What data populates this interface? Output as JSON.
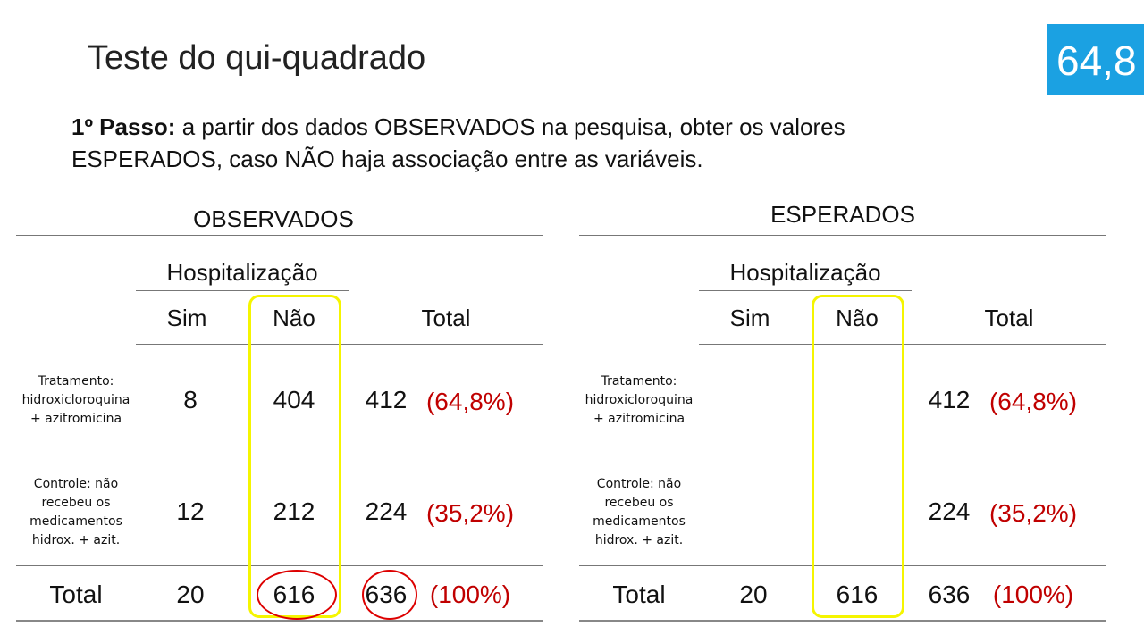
{
  "title": "Teste do qui-quadrado",
  "badge": "64,8",
  "step": {
    "label": "1º Passo:",
    "lines": [
      "a partir dos dados OBSERVADOS na pesquisa, obter os valores",
      "ESPERADOS, caso NÃO haja associação entre as variáveis."
    ]
  },
  "tables": [
    {
      "title": "OBSERVADOS",
      "group": "Hospitalização",
      "columns": [
        "Sim",
        "Não",
        "Total"
      ],
      "rows": [
        {
          "label": [
            "Tratamento:",
            "hidroxicloroquina",
            "+ azitromicina"
          ],
          "sim": "8",
          "nao": "404",
          "total": "412",
          "pct": "(64,8%)"
        },
        {
          "label": [
            "Controle: não",
            "recebeu os",
            "medicamentos",
            "hidrox. + azit."
          ],
          "sim": "12",
          "nao": "212",
          "total": "224",
          "pct": "(35,2%)"
        },
        {
          "label": [
            "Total"
          ],
          "sim": "20",
          "nao": "616",
          "total": "636",
          "pct": "(100%)"
        }
      ]
    },
    {
      "title": "ESPERADOS",
      "group": "Hospitalização",
      "columns": [
        "Sim",
        "Não",
        "Total"
      ],
      "rows": [
        {
          "label": [
            "Tratamento:",
            "hidroxicloroquina",
            "+ azitromicina"
          ],
          "total": "412",
          "pct": "(64,8%)"
        },
        {
          "label": [
            "Controle: não",
            "recebeu os",
            "medicamentos",
            "hidrox. + azit."
          ],
          "total": "224",
          "pct": "(35,2%)"
        },
        {
          "label": [
            "Total"
          ],
          "sim": "20",
          "nao": "616",
          "total": "636",
          "pct": "(100%)"
        }
      ]
    }
  ]
}
